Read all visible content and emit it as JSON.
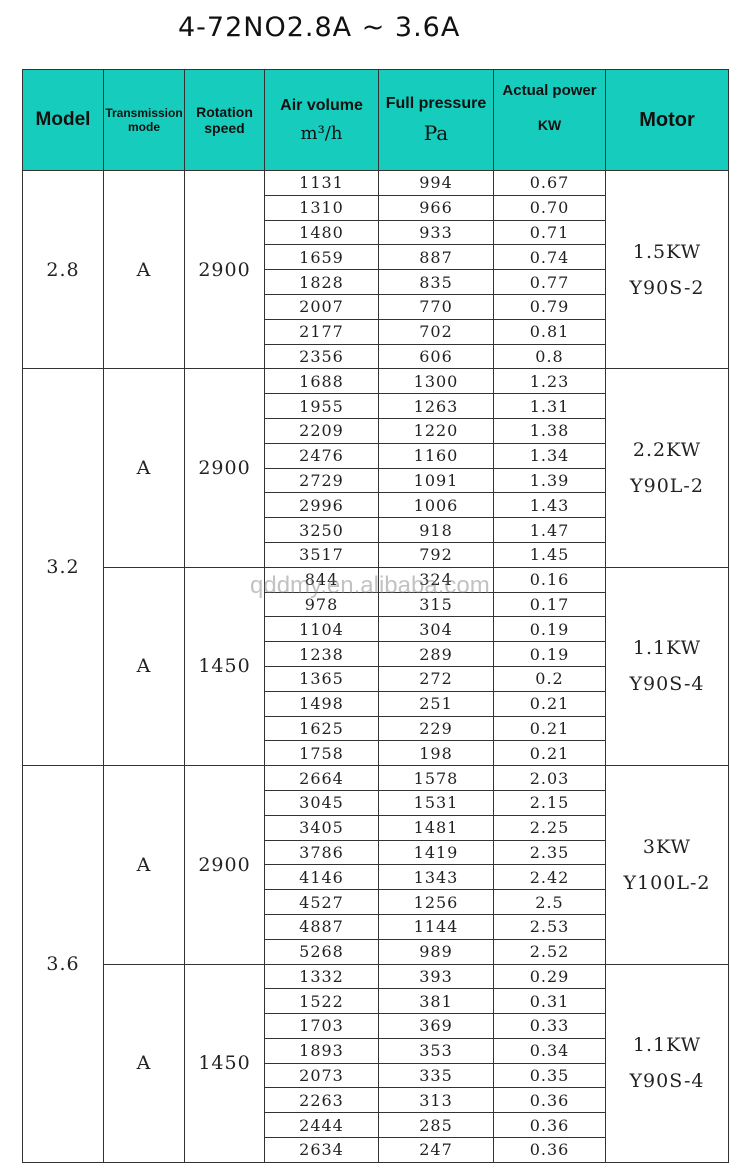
{
  "title": "4-72NO2.8A ~ 3.6A",
  "watermark": "qddmy.en.alibaba.com",
  "header_color": "#16cdbd",
  "headers": {
    "model": "Model",
    "transmission": "Transmission mode",
    "rotation": "Rotation speed",
    "air": "Air volume",
    "air_unit": "m³/h",
    "pressure": "Full pressure",
    "pressure_unit": "Pa",
    "power": "Actual power",
    "power_unit": "KW",
    "motor": "Motor"
  },
  "groups": [
    {
      "model": "2.8",
      "sections": [
        {
          "mode": "A",
          "speed": "2900",
          "motor_power": "1.5KW",
          "motor_model": "Y90S-2",
          "rows": [
            [
              "1131",
              "994",
              "0.67"
            ],
            [
              "1310",
              "966",
              "0.70"
            ],
            [
              "1480",
              "933",
              "0.71"
            ],
            [
              "1659",
              "887",
              "0.74"
            ],
            [
              "1828",
              "835",
              "0.77"
            ],
            [
              "2007",
              "770",
              "0.79"
            ],
            [
              "2177",
              "702",
              "0.81"
            ],
            [
              "2356",
              "606",
              "0.8"
            ]
          ]
        }
      ]
    },
    {
      "model": "3.2",
      "sections": [
        {
          "mode": "A",
          "speed": "2900",
          "motor_power": "2.2KW",
          "motor_model": "Y90L-2",
          "rows": [
            [
              "1688",
              "1300",
              "1.23"
            ],
            [
              "1955",
              "1263",
              "1.31"
            ],
            [
              "2209",
              "1220",
              "1.38"
            ],
            [
              "2476",
              "1160",
              "1.34"
            ],
            [
              "2729",
              "1091",
              "1.39"
            ],
            [
              "2996",
              "1006",
              "1.43"
            ],
            [
              "3250",
              "918",
              "1.47"
            ],
            [
              "3517",
              "792",
              "1.45"
            ]
          ]
        },
        {
          "mode": "A",
          "speed": "1450",
          "motor_power": "1.1KW",
          "motor_model": "Y90S-4",
          "rows": [
            [
              "844",
              "324",
              "0.16"
            ],
            [
              "978",
              "315",
              "0.17"
            ],
            [
              "1104",
              "304",
              "0.19"
            ],
            [
              "1238",
              "289",
              "0.19"
            ],
            [
              "1365",
              "272",
              "0.2"
            ],
            [
              "1498",
              "251",
              "0.21"
            ],
            [
              "1625",
              "229",
              "0.21"
            ],
            [
              "1758",
              "198",
              "0.21"
            ]
          ]
        }
      ]
    },
    {
      "model": "3.6",
      "sections": [
        {
          "mode": "A",
          "speed": "2900",
          "motor_power": "3KW",
          "motor_model": "Y100L-2",
          "rows": [
            [
              "2664",
              "1578",
              "2.03"
            ],
            [
              "3045",
              "1531",
              "2.15"
            ],
            [
              "3405",
              "1481",
              "2.25"
            ],
            [
              "3786",
              "1419",
              "2.35"
            ],
            [
              "4146",
              "1343",
              "2.42"
            ],
            [
              "4527",
              "1256",
              "2.5"
            ],
            [
              "4887",
              "1144",
              "2.53"
            ],
            [
              "5268",
              "989",
              "2.52"
            ]
          ]
        },
        {
          "mode": "A",
          "speed": "1450",
          "motor_power": "1.1KW",
          "motor_model": "Y90S-4",
          "rows": [
            [
              "1332",
              "393",
              "0.29"
            ],
            [
              "1522",
              "381",
              "0.31"
            ],
            [
              "1703",
              "369",
              "0.33"
            ],
            [
              "1893",
              "353",
              "0.34"
            ],
            [
              "2073",
              "335",
              "0.35"
            ],
            [
              "2263",
              "313",
              "0.36"
            ],
            [
              "2444",
              "285",
              "0.36"
            ],
            [
              "2634",
              "247",
              "0.36"
            ]
          ]
        }
      ]
    }
  ]
}
